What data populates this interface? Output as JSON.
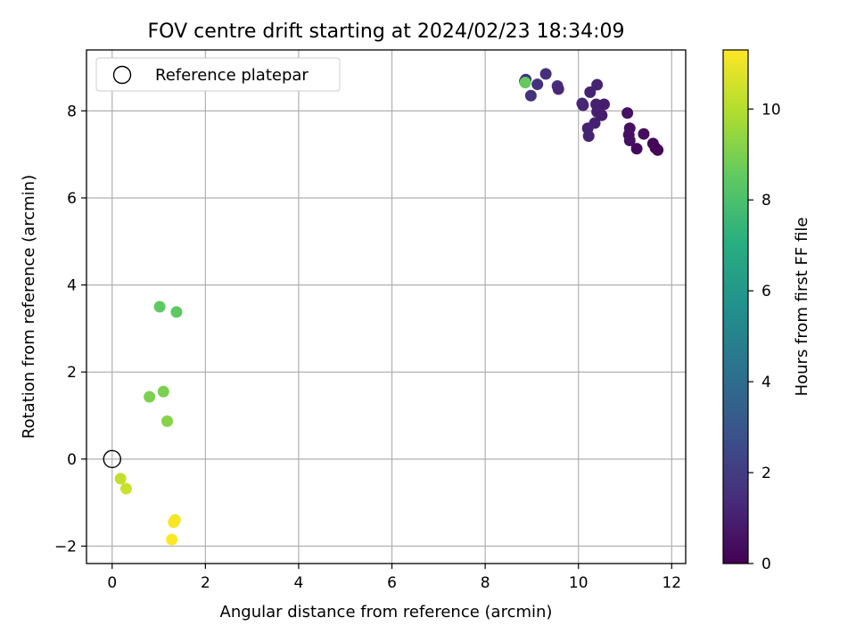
{
  "chart_data": {
    "type": "scatter",
    "title": "FOV centre drift starting at 2024/02/23 18:34:09",
    "xlabel": "Angular distance from reference (arcmin)",
    "ylabel": "Rotation from reference (arcmin)",
    "xlim": [
      -0.55,
      12.3
    ],
    "ylim": [
      -2.4,
      9.4
    ],
    "x_ticks": [
      0,
      2,
      4,
      6,
      8,
      10,
      12
    ],
    "y_ticks": [
      -2,
      0,
      2,
      4,
      6,
      8
    ],
    "x_tick_labels": [
      "0",
      "2",
      "4",
      "6",
      "8",
      "10",
      "12"
    ],
    "y_tick_labels": [
      "−2",
      "0",
      "2",
      "4",
      "6",
      "8"
    ],
    "grid": true,
    "legend": {
      "placement": "top-left",
      "entries": [
        "Reference platepar"
      ]
    },
    "reference_point": {
      "x": 0,
      "y": 0
    },
    "colorbar": {
      "label": "Hours from first FF file",
      "colormap": "viridis",
      "range": [
        0,
        11.3
      ],
      "ticks": [
        0,
        2,
        4,
        6,
        8,
        10
      ],
      "tick_labels": [
        "0",
        "2",
        "4",
        "6",
        "8",
        "10"
      ]
    },
    "series": [
      {
        "points": [
          {
            "x": 8.87,
            "y": 8.72,
            "t": 1.5
          },
          {
            "x": 8.85,
            "y": 8.68,
            "t": 1.8
          },
          {
            "x": 9.12,
            "y": 8.61,
            "t": 1.6
          },
          {
            "x": 8.98,
            "y": 8.35,
            "t": 1.6
          },
          {
            "x": 9.3,
            "y": 8.85,
            "t": 1.5
          },
          {
            "x": 9.55,
            "y": 8.57,
            "t": 1.4
          },
          {
            "x": 9.57,
            "y": 8.5,
            "t": 1.3
          },
          {
            "x": 10.08,
            "y": 8.17,
            "t": 1.3
          },
          {
            "x": 10.1,
            "y": 8.13,
            "t": 1.2
          },
          {
            "x": 10.25,
            "y": 8.43,
            "t": 1.1
          },
          {
            "x": 10.4,
            "y": 8.6,
            "t": 1.1
          },
          {
            "x": 10.38,
            "y": 8.15,
            "t": 1.0
          },
          {
            "x": 10.4,
            "y": 7.98,
            "t": 1.0
          },
          {
            "x": 10.55,
            "y": 8.15,
            "t": 0.9
          },
          {
            "x": 10.5,
            "y": 7.9,
            "t": 0.9
          },
          {
            "x": 10.35,
            "y": 7.72,
            "t": 1.0
          },
          {
            "x": 10.2,
            "y": 7.6,
            "t": 1.1
          },
          {
            "x": 10.22,
            "y": 7.42,
            "t": 1.1
          },
          {
            "x": 11.05,
            "y": 7.95,
            "t": 0.5
          },
          {
            "x": 11.1,
            "y": 7.6,
            "t": 0.5
          },
          {
            "x": 11.08,
            "y": 7.45,
            "t": 0.5
          },
          {
            "x": 11.1,
            "y": 7.32,
            "t": 0.5
          },
          {
            "x": 11.4,
            "y": 7.47,
            "t": 0.4
          },
          {
            "x": 11.25,
            "y": 7.13,
            "t": 0.3
          },
          {
            "x": 11.6,
            "y": 7.25,
            "t": 0.2
          },
          {
            "x": 11.65,
            "y": 7.15,
            "t": 0.2
          },
          {
            "x": 11.7,
            "y": 7.1,
            "t": 0.1
          },
          {
            "x": 8.86,
            "y": 8.65,
            "t": 8.6
          },
          {
            "x": 1.02,
            "y": 3.5,
            "t": 8.5
          },
          {
            "x": 1.38,
            "y": 3.38,
            "t": 8.5
          },
          {
            "x": 0.8,
            "y": 1.43,
            "t": 9.0
          },
          {
            "x": 1.1,
            "y": 1.55,
            "t": 9.0
          },
          {
            "x": 1.18,
            "y": 0.87,
            "t": 9.2
          },
          {
            "x": 0.18,
            "y": -0.45,
            "t": 10.3
          },
          {
            "x": 0.3,
            "y": -0.68,
            "t": 10.4
          },
          {
            "x": 1.35,
            "y": -1.4,
            "t": 11.1
          },
          {
            "x": 1.32,
            "y": -1.45,
            "t": 11.2
          },
          {
            "x": 1.28,
            "y": -1.85,
            "t": 11.3
          }
        ]
      }
    ]
  }
}
